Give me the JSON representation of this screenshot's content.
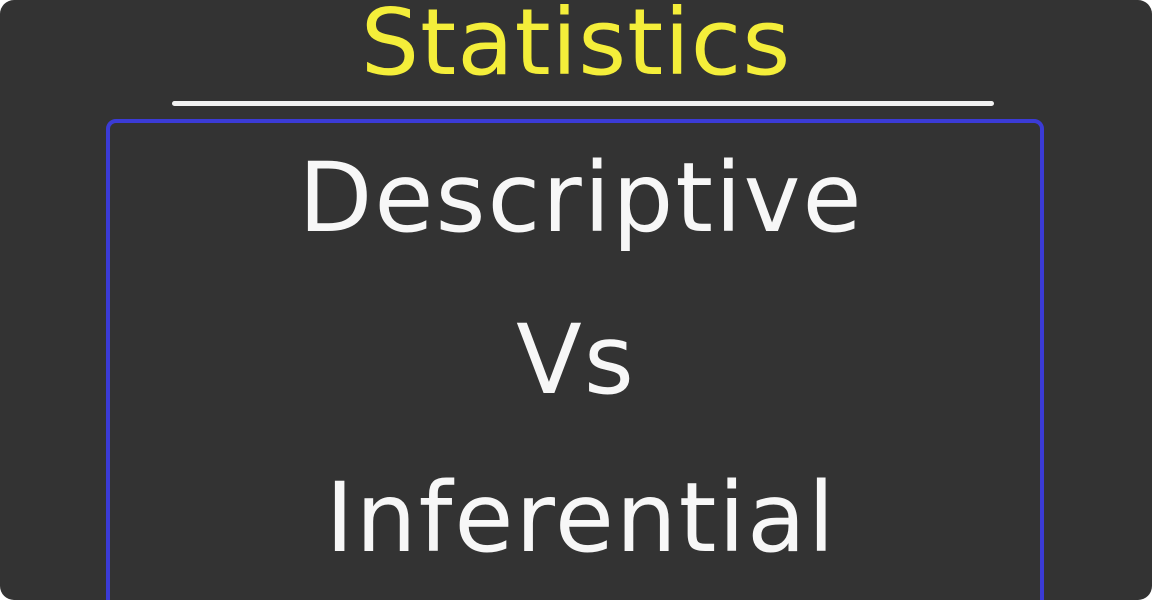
{
  "title": "Statistics",
  "lines": [
    "Descriptive",
    "Vs",
    "Inferential"
  ],
  "colors": {
    "background": "#333333",
    "title": "#f4ee3a",
    "text": "#f7f7f7",
    "frame_border": "#3b3bd6",
    "underline": "#f2f2f2"
  }
}
